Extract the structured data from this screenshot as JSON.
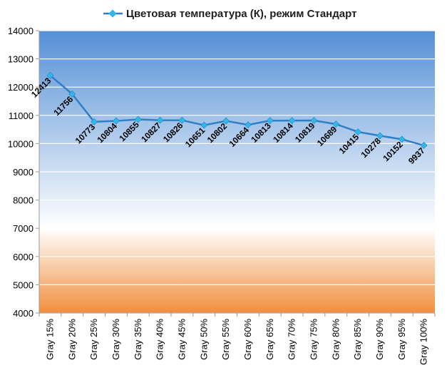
{
  "chart_data": {
    "type": "line",
    "title": "",
    "xlabel": "",
    "ylabel": "",
    "ylim": [
      4000,
      14000
    ],
    "yticks": [
      4000,
      5000,
      6000,
      7000,
      8000,
      9000,
      10000,
      11000,
      12000,
      13000,
      14000
    ],
    "grid": true,
    "legend": "top",
    "categories": [
      "Gray 15%",
      "Gray 20%",
      "Gray 25%",
      "Gray 30%",
      "Gray 35%",
      "Gray 40%",
      "Gray 45%",
      "Gray 50%",
      "Gray 55%",
      "Gray 60%",
      "Gray 65%",
      "Gray 70%",
      "Gray 75%",
      "Gray 80%",
      "Gray 85%",
      "Gray 90%",
      "Gray 95%",
      "Gray 100%"
    ],
    "series": [
      {
        "name": "Цветовая температура (К), режим Стандарт",
        "color": "#2f7fc6",
        "marker_color": "#33b6e8",
        "values": [
          12413,
          11756,
          10773,
          10804,
          10855,
          10827,
          10826,
          10651,
          10802,
          10664,
          10813,
          10814,
          10819,
          10689,
          10415,
          10278,
          10152,
          9937
        ]
      }
    ],
    "background": {
      "top_color": "#5590d6",
      "mid_color": "#ffffff",
      "bottom_color": "#f18e3c",
      "split_value": 7000
    }
  }
}
